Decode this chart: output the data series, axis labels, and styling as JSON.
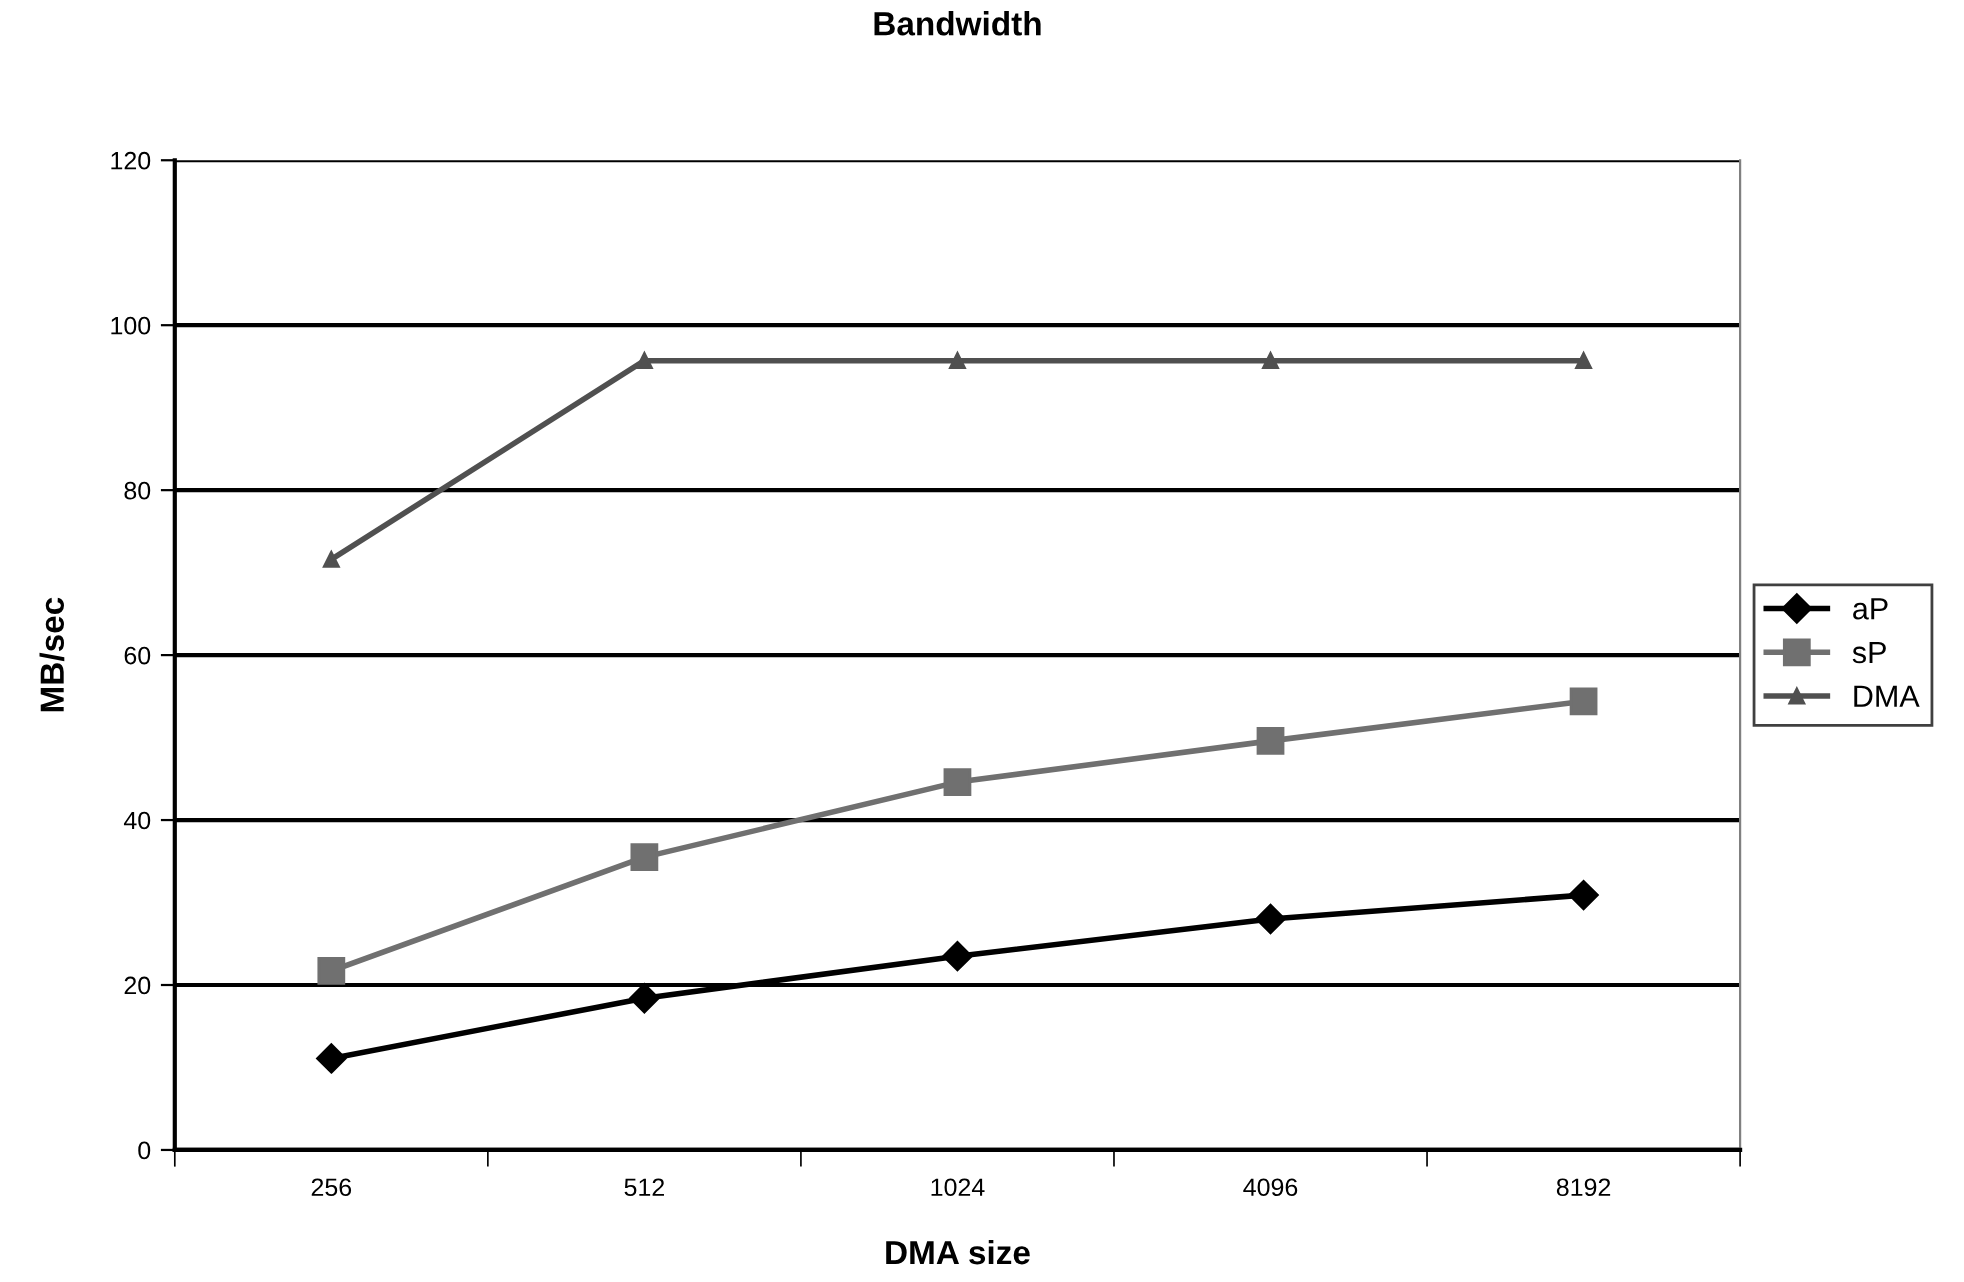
{
  "chart_data": {
    "type": "line",
    "title": "Bandwidth",
    "xlabel": "DMA size",
    "ylabel": "MB/sec",
    "categories": [
      "256",
      "512",
      "1024",
      "4096",
      "8192"
    ],
    "series": [
      {
        "name": "aP",
        "color": "#000000",
        "marker": "diamond",
        "values": [
          11.1,
          18.4,
          23.5,
          28.0,
          30.9
        ]
      },
      {
        "name": "sP",
        "color": "#707070",
        "marker": "square",
        "values": [
          21.7,
          35.5,
          44.6,
          49.6,
          54.4
        ]
      },
      {
        "name": "DMA",
        "color": "#505050",
        "marker": "triangle",
        "values": [
          71.6,
          95.7,
          95.7,
          95.7,
          95.7
        ]
      }
    ],
    "ylim": [
      0,
      120
    ],
    "yticks": [
      0,
      20,
      40,
      60,
      80,
      100,
      120
    ],
    "grid": "y",
    "legend": "right"
  }
}
